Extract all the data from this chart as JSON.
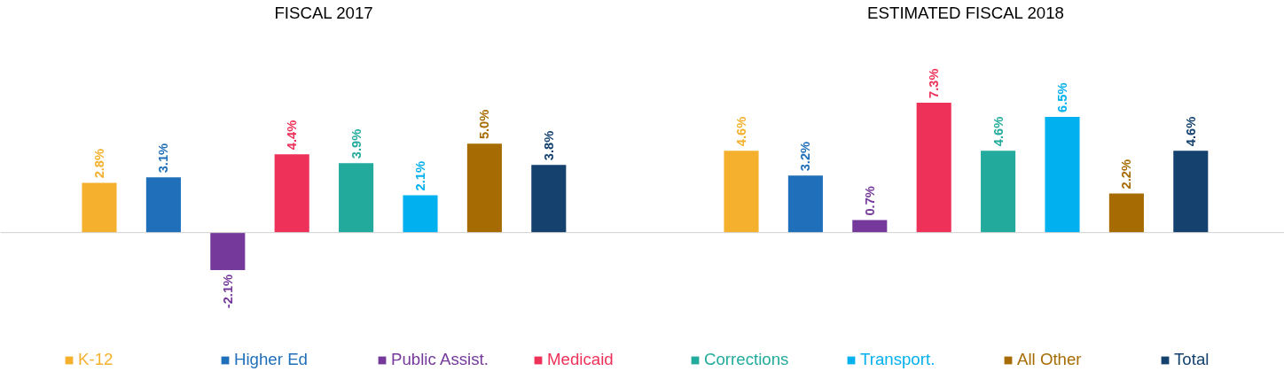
{
  "chart_data": {
    "type": "bar",
    "categories": [
      "FISCAL 2017",
      "ESTIMATED FISCAL 2018"
    ],
    "data_labels": true,
    "tick_labels": "x",
    "legend": "bottom",
    "series": [
      {
        "name": "K-12",
        "color": "#f5b02e",
        "values": [
          2.8,
          4.6
        ],
        "value_labels": [
          "2.8%",
          "4.6%"
        ]
      },
      {
        "name": "Higher Ed",
        "color": "#1f6fba",
        "values": [
          3.1,
          3.2
        ],
        "value_labels": [
          "3.1%",
          "3.2%"
        ]
      },
      {
        "name": "Public Assist.",
        "color": "#74399a",
        "values": [
          -2.1,
          0.7
        ],
        "value_labels": [
          "-2.1%",
          "0.7%"
        ]
      },
      {
        "name": "Medicaid",
        "color": "#ee3158",
        "values": [
          4.4,
          7.3
        ],
        "value_labels": [
          "4.4%",
          "7.3%"
        ]
      },
      {
        "name": "Corrections",
        "color": "#22ab9c",
        "values": [
          3.9,
          4.6
        ],
        "value_labels": [
          "3.9%",
          "4.6%"
        ]
      },
      {
        "name": "Transport.",
        "color": "#00b0ef",
        "values": [
          2.1,
          6.5
        ],
        "value_labels": [
          "2.1%",
          "6.5%"
        ]
      },
      {
        "name": "All Other",
        "color": "#a66c03",
        "values": [
          5.0,
          2.2
        ],
        "value_labels": [
          "5.0%",
          "2.2%"
        ]
      },
      {
        "name": "Total",
        "color": "#15416f",
        "values": [
          3.8,
          4.6
        ],
        "value_labels": [
          "3.8%",
          "4.6%"
        ]
      }
    ]
  }
}
